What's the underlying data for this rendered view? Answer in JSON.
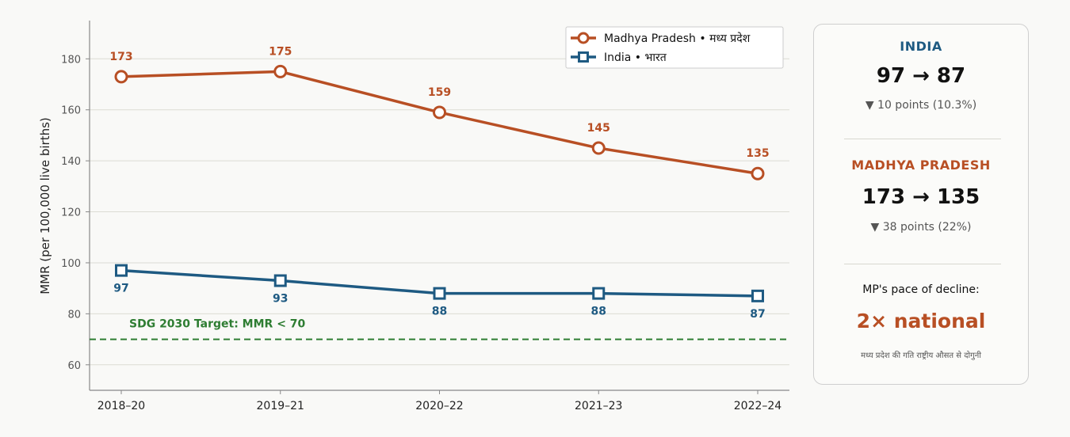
{
  "colors": {
    "mp": "#b84f24",
    "india": "#1e5a82",
    "target": "#2e7d32",
    "grid": "#dcdcd4",
    "axis": "#888888"
  },
  "chart_data": {
    "type": "line",
    "categories": [
      "2018–20",
      "2019–21",
      "2020–22",
      "2021–23",
      "2022–24"
    ],
    "series": [
      {
        "name": "Madhya Pradesh  •  मध्य प्रदेश",
        "key": "mp",
        "marker": "circle",
        "values": [
          173,
          175,
          159,
          145,
          135
        ]
      },
      {
        "name": "India  •  भारत",
        "key": "india",
        "marker": "square",
        "values": [
          97,
          93,
          88,
          88,
          87
        ]
      }
    ],
    "ylabel": "MMR (per 100,000 live births)",
    "xlabel": "",
    "ylim": [
      50,
      195
    ],
    "yticks": [
      60,
      80,
      100,
      120,
      140,
      160,
      180
    ],
    "grid": true,
    "legend": "top-right",
    "reference_line": {
      "value": 70,
      "label": "SDG 2030 Target: MMR < 70"
    }
  },
  "panel": {
    "india": {
      "title": "INDIA",
      "change": "97 → 87",
      "delta": "▼ 10 points  (10.3%)"
    },
    "mp": {
      "title": "MADHYA PRADESH",
      "change": "173 → 135",
      "delta": "▼ 38 points  (22%)"
    },
    "pace_label": "MP's pace of decline:",
    "pace_value": "2× national",
    "pace_note": "मध्य प्रदेश की गति राष्ट्रीय औसत से दोगुनी"
  }
}
